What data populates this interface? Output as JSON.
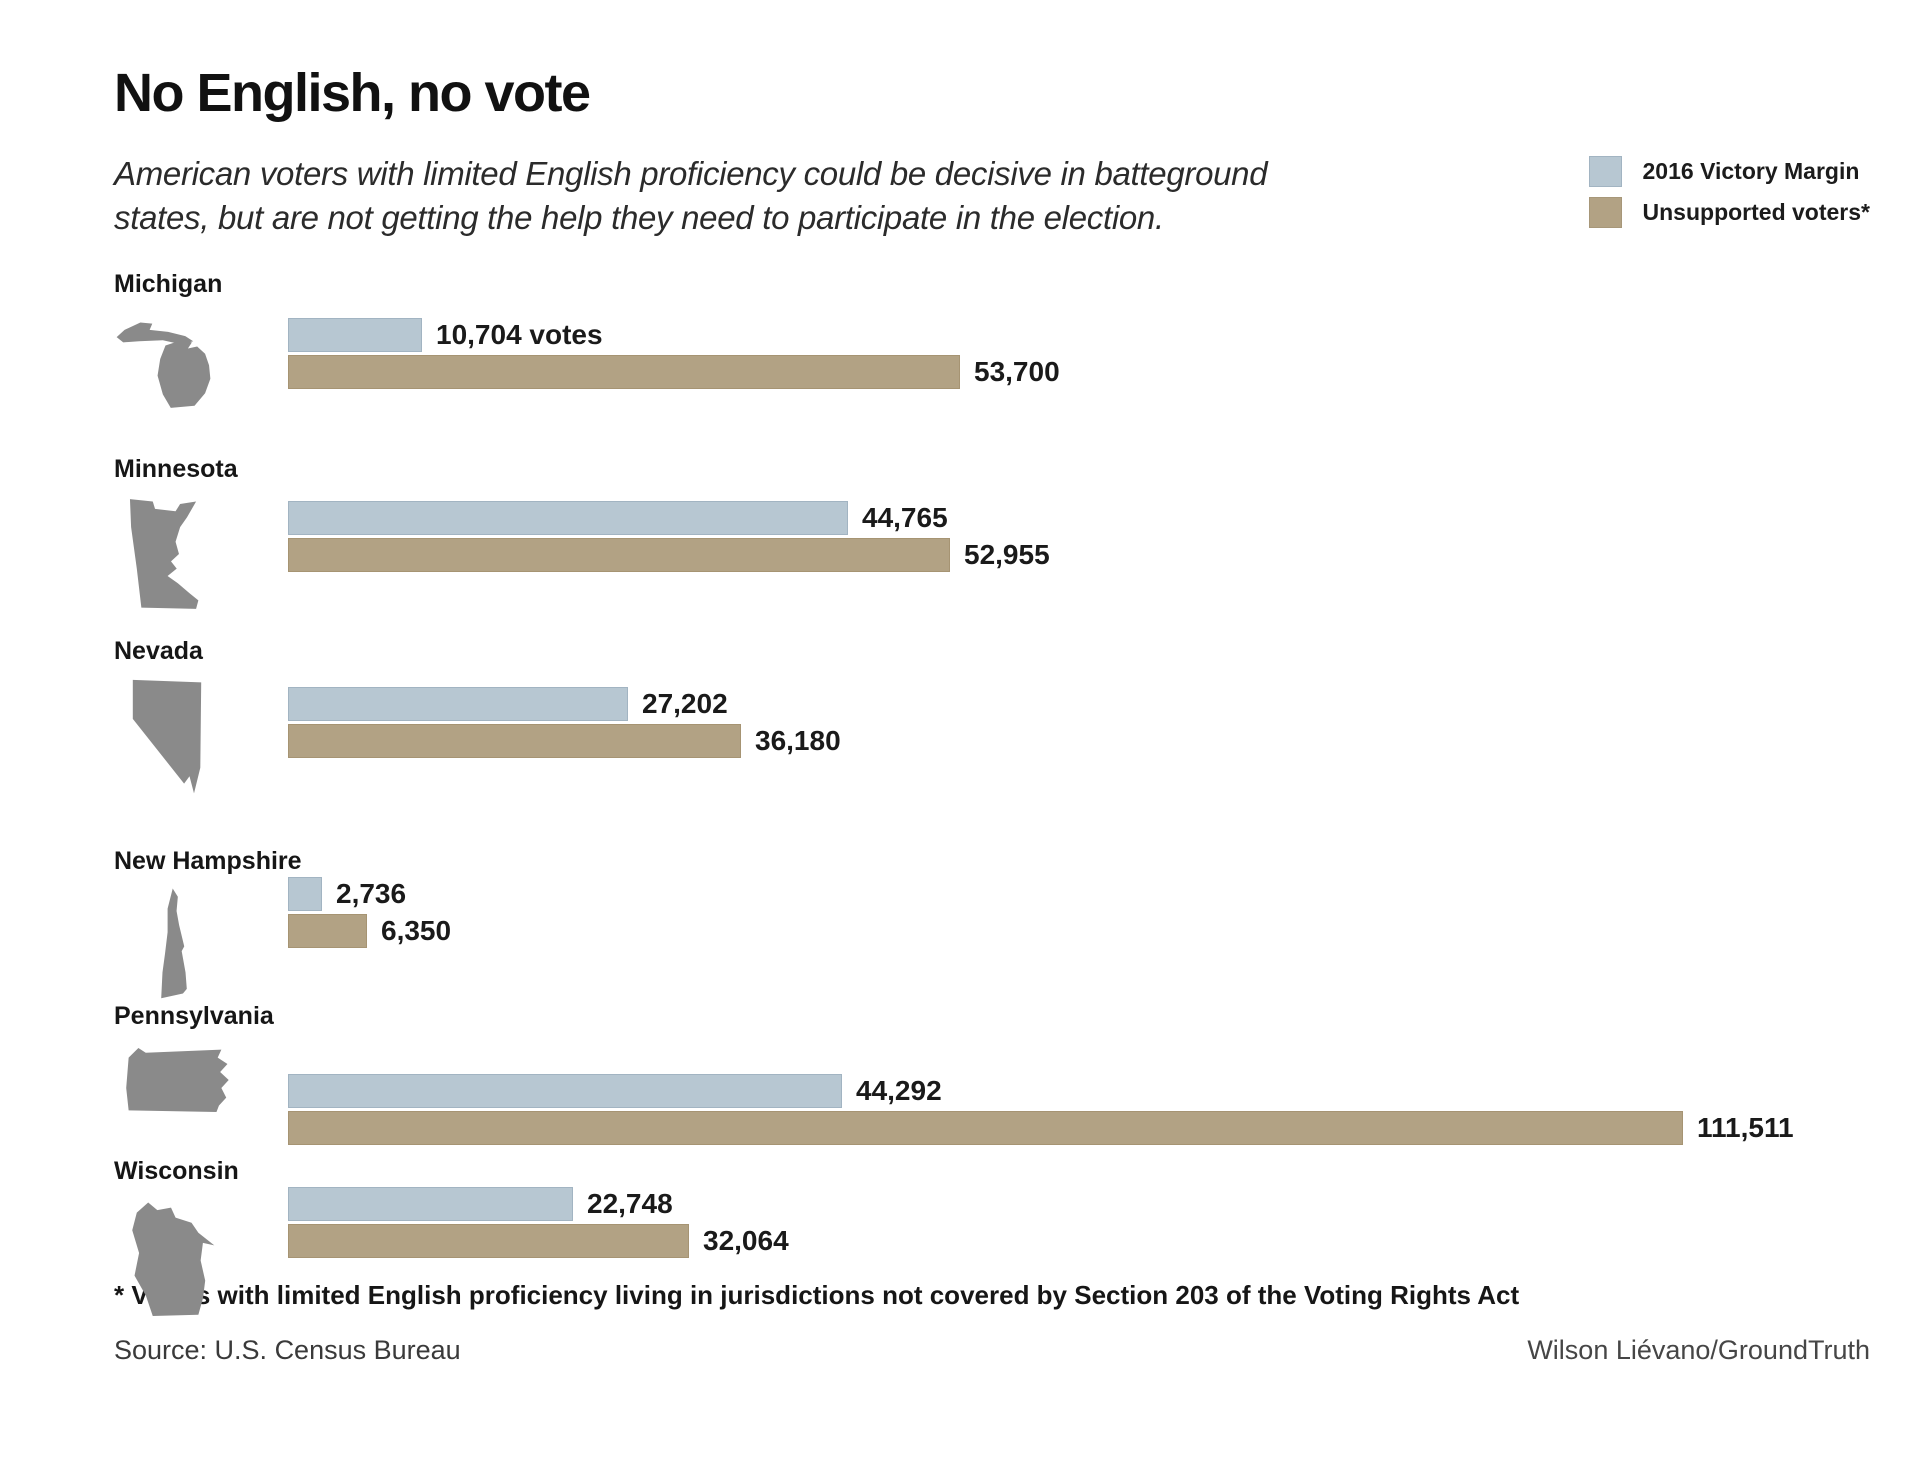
{
  "title": "No English, no vote",
  "subtitle": "American voters with limited English proficiency could be decisive in batteground states, but are not getting the help they need to participate in the election.",
  "legend": {
    "victory_margin_label": "2016 Victory Margin",
    "unsupported_label": "Unsupported voters*"
  },
  "colors": {
    "victory_margin": "#b7c7d2",
    "unsupported": "#b2a284",
    "state_map": "#8a8a8a"
  },
  "footnote": "* Voters with limited English proficiency living in jurisdictions not covered by Section 203 of the Voting Rights Act",
  "source": "Source: U.S. Census Bureau",
  "credit": "Wilson Liévano/GroundTruth",
  "chart_data": {
    "type": "bar",
    "orientation": "horizontal",
    "legend_position": "top-right",
    "max_value": 111511,
    "series_names": [
      "2016 Victory Margin",
      "Unsupported voters*"
    ],
    "states": [
      {
        "name": "Michigan",
        "margin": 10704,
        "margin_label": "10,704 votes",
        "unsupported": 53700,
        "unsupported_label": "53,700"
      },
      {
        "name": "Minnesota",
        "margin": 44765,
        "margin_label": "44,765",
        "unsupported": 52955,
        "unsupported_label": "52,955"
      },
      {
        "name": "Nevada",
        "margin": 27202,
        "margin_label": "27,202",
        "unsupported": 36180,
        "unsupported_label": "36,180"
      },
      {
        "name": "New Hampshire",
        "margin": 2736,
        "margin_label": "2,736",
        "unsupported": 6350,
        "unsupported_label": "6,350"
      },
      {
        "name": "Pennsylvania",
        "margin": 44292,
        "margin_label": "44,292",
        "unsupported": 111511,
        "unsupported_label": "111,511"
      },
      {
        "name": "Wisconsin",
        "margin": 22748,
        "margin_label": "22,748",
        "unsupported": 32064,
        "unsupported_label": "32,064"
      }
    ]
  }
}
